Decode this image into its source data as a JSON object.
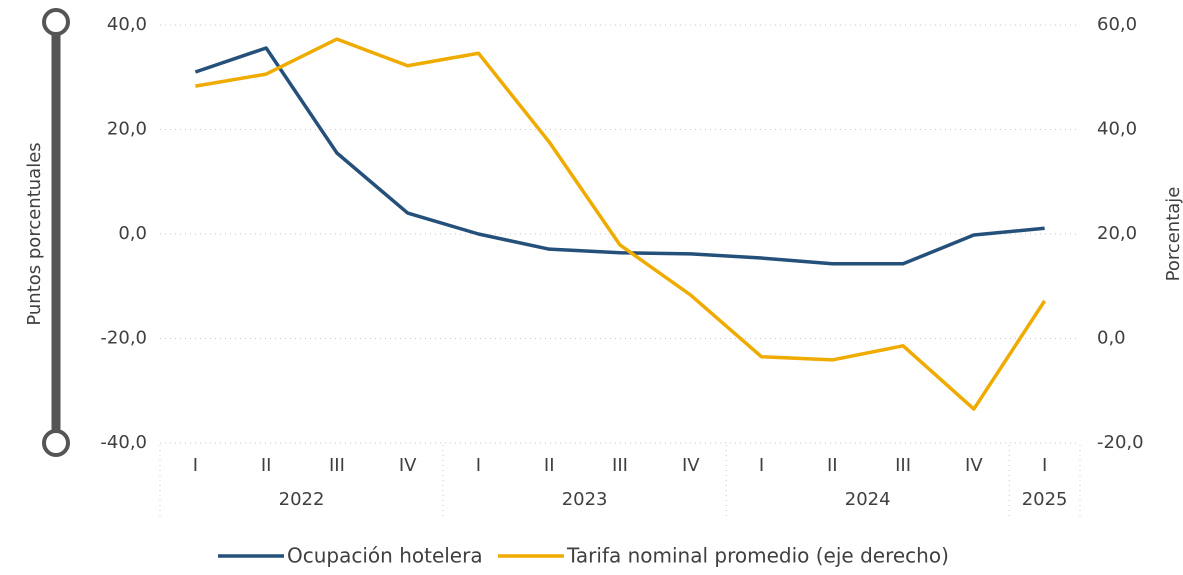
{
  "chart_data": {
    "type": "line",
    "groups": [
      {
        "label": "2022",
        "categories": [
          "I",
          "II",
          "III",
          "IV"
        ]
      },
      {
        "label": "2023",
        "categories": [
          "I",
          "II",
          "III",
          "IV"
        ]
      },
      {
        "label": "2024",
        "categories": [
          "I",
          "II",
          "III",
          "IV"
        ]
      },
      {
        "label": "2025",
        "categories": [
          "I"
        ]
      }
    ],
    "series": [
      {
        "name": "Ocupación hotelera",
        "color": "#24507a",
        "axis": "y",
        "values": [
          31.0,
          35.6,
          15.5,
          4.0,
          0.0,
          -2.9,
          -3.6,
          -3.8,
          -4.6,
          -5.7,
          -5.7,
          -0.2,
          1.1
        ]
      },
      {
        "name": "Tarifa nominal promedio (eje derecho)",
        "color": "#efab00",
        "axis": "y2",
        "values": [
          48.3,
          50.6,
          57.3,
          52.2,
          54.6,
          37.6,
          17.9,
          8.3,
          -3.5,
          -4.1,
          -1.4,
          -13.5,
          7.2
        ]
      }
    ],
    "ylabel": "Puntos porcentuales",
    "y2label": "Porcentaje",
    "ylim": [
      -40,
      40
    ],
    "yticks": [
      {
        "value": -40,
        "label": "-40,0"
      },
      {
        "value": -20,
        "label": "-20,0"
      },
      {
        "value": 0,
        "label": "0,0"
      },
      {
        "value": 20,
        "label": "20,0"
      },
      {
        "value": 40,
        "label": "40,0"
      }
    ],
    "y2lim": [
      -20,
      60
    ],
    "y2ticks": [
      {
        "value": -20,
        "label": "-20,0"
      },
      {
        "value": 0,
        "label": "0,0"
      },
      {
        "value": 20,
        "label": "20,0"
      },
      {
        "value": 40,
        "label": "40,0"
      },
      {
        "value": 60,
        "label": "60,0"
      }
    ],
    "grid": true
  }
}
